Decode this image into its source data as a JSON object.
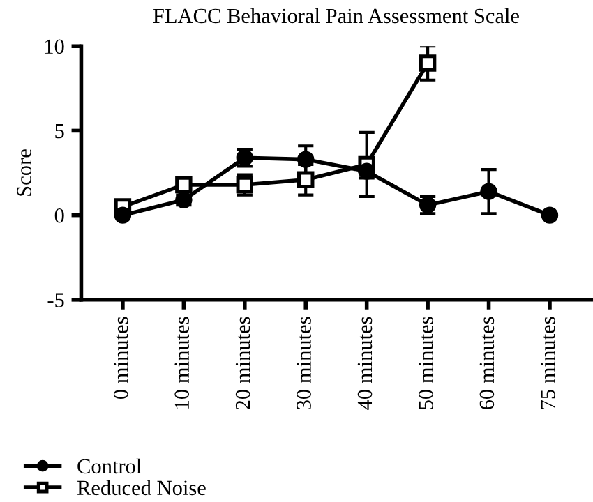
{
  "chart_data": {
    "type": "line",
    "title": "FLACC Behavioral Pain Assessment Scale",
    "ylabel": "Score",
    "categories": [
      "0 minutes",
      "10 minutes",
      "20 minutes",
      "30 minutes",
      "40 minutes",
      "50 minutes",
      "60 minutes",
      "75 minutes"
    ],
    "series": [
      {
        "name": "Control",
        "color": "#000000",
        "marker": "circle",
        "values": [
          0.0,
          0.9,
          3.4,
          3.3,
          2.6,
          0.6,
          1.4,
          0.0
        ],
        "errors": [
          0.1,
          0.3,
          0.5,
          0.8,
          0.4,
          0.5,
          1.3,
          0.1
        ]
      },
      {
        "name": "Reduced Noise",
        "color": "#000000",
        "marker": "square",
        "values": [
          0.5,
          1.8,
          1.8,
          2.1,
          3.0,
          9.0,
          null,
          null
        ],
        "errors": [
          0.2,
          0.3,
          0.6,
          0.9,
          1.9,
          1.0,
          null,
          null
        ]
      }
    ],
    "ylim": [
      -5,
      10
    ],
    "yticks": [
      -5,
      0,
      5,
      10
    ],
    "grid": false,
    "legend": "bottom left",
    "line_style": "solid"
  }
}
